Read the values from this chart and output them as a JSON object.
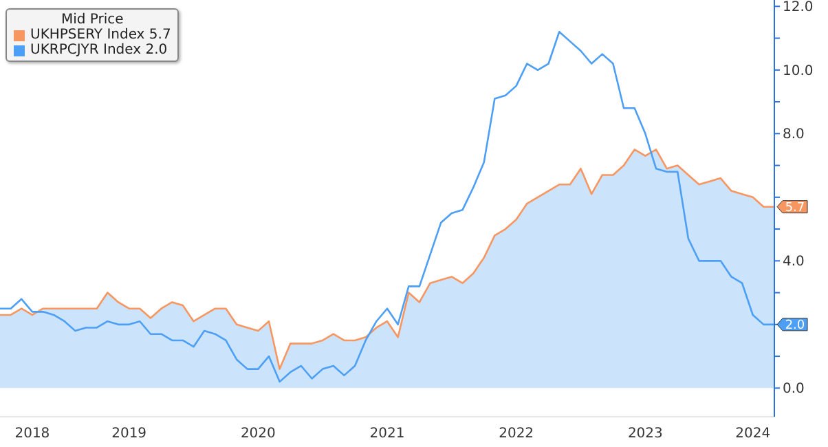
{
  "chart_data": {
    "type": "line",
    "legend_title": "Mid Price",
    "legend": "top left",
    "grid": false,
    "marker": "none",
    "line_style": "solid",
    "x": [
      "2018-06",
      "2018-07",
      "2018-08",
      "2018-09",
      "2018-10",
      "2018-11",
      "2018-12",
      "2019-01",
      "2019-02",
      "2019-03",
      "2019-04",
      "2019-05",
      "2019-06",
      "2019-07",
      "2019-08",
      "2019-09",
      "2019-10",
      "2019-11",
      "2019-12",
      "2020-01",
      "2020-02",
      "2020-03",
      "2020-04",
      "2020-05",
      "2020-06",
      "2020-07",
      "2020-08",
      "2020-09",
      "2020-10",
      "2020-11",
      "2020-12",
      "2021-01",
      "2021-02",
      "2021-03",
      "2021-04",
      "2021-05",
      "2021-06",
      "2021-07",
      "2021-08",
      "2021-09",
      "2021-10",
      "2021-11",
      "2021-12",
      "2022-01",
      "2022-02",
      "2022-03",
      "2022-04",
      "2022-05",
      "2022-06",
      "2022-07",
      "2022-08",
      "2022-09",
      "2022-10",
      "2022-11",
      "2022-12",
      "2023-01",
      "2023-02",
      "2023-03",
      "2023-04",
      "2023-05",
      "2023-06",
      "2023-07",
      "2023-08",
      "2023-09",
      "2023-10",
      "2023-11",
      "2023-12",
      "2024-01",
      "2024-02",
      "2024-03",
      "2024-04",
      "2024-05",
      "2024-06"
    ],
    "xlim": [
      "2018-06",
      "2024-06"
    ],
    "xticks": [
      {
        "value": "2018-09",
        "label": "2018"
      },
      {
        "value": "2019-06",
        "label": "2019"
      },
      {
        "value": "2020-06",
        "label": "2020"
      },
      {
        "value": "2021-06",
        "label": "2021"
      },
      {
        "value": "2022-06",
        "label": "2022"
      },
      {
        "value": "2023-06",
        "label": "2023"
      },
      {
        "value": "2024-04",
        "label": "2024"
      }
    ],
    "ylim": [
      -0.9,
      12.2
    ],
    "yticks": [
      {
        "value": 0,
        "label": "0.0"
      },
      {
        "value": 1,
        "label": null
      },
      {
        "value": 2,
        "label": null
      },
      {
        "value": 3,
        "label": null
      },
      {
        "value": 4,
        "label": "4.0"
      },
      {
        "value": 5,
        "label": null
      },
      {
        "value": 6,
        "label": null
      },
      {
        "value": 7,
        "label": null
      },
      {
        "value": 8,
        "label": "8.0"
      },
      {
        "value": 9,
        "label": null
      },
      {
        "value": 10,
        "label": "10.0"
      },
      {
        "value": 11,
        "label": null
      },
      {
        "value": 12,
        "label": "12.0"
      }
    ],
    "series": [
      {
        "name": "UKHPSERY Index 5.7",
        "type": "line",
        "color": "#f79660",
        "values": [
          2.3,
          2.3,
          2.5,
          2.3,
          2.5,
          2.5,
          2.5,
          2.5,
          2.5,
          2.5,
          3.0,
          2.7,
          2.5,
          2.5,
          2.2,
          2.5,
          2.7,
          2.6,
          2.1,
          2.3,
          2.5,
          2.5,
          2.0,
          1.9,
          1.8,
          2.1,
          0.6,
          1.4,
          1.4,
          1.4,
          1.5,
          1.7,
          1.5,
          1.5,
          1.6,
          1.9,
          2.1,
          1.6,
          3.0,
          2.7,
          3.3,
          3.4,
          3.5,
          3.3,
          3.6,
          4.1,
          4.8,
          5.0,
          5.3,
          5.8,
          6.0,
          6.2,
          6.4,
          6.4,
          6.9,
          6.1,
          6.7,
          6.7,
          7.0,
          7.5,
          7.3,
          7.5,
          6.9,
          7.0,
          6.7,
          6.4,
          6.5,
          6.6,
          6.2,
          6.1,
          6.0,
          5.7,
          5.7
        ],
        "value_labels": [
          null,
          null,
          null,
          null,
          null,
          null,
          null,
          null,
          null,
          null,
          null,
          null,
          null,
          null,
          null,
          null,
          null,
          null,
          null,
          null,
          null,
          null,
          null,
          null,
          null,
          null,
          null,
          null,
          null,
          null,
          null,
          null,
          null,
          null,
          null,
          null,
          null,
          null,
          null,
          null,
          null,
          null,
          null,
          null,
          null,
          null,
          null,
          null,
          null,
          null,
          null,
          null,
          null,
          null,
          null,
          null,
          null,
          null,
          null,
          null,
          null,
          null,
          null,
          null,
          null,
          null,
          null,
          null,
          null,
          null,
          null,
          null,
          "5.7"
        ]
      },
      {
        "type": "area",
        "color": "#cbe4fc",
        "values": [
          2.3,
          2.3,
          2.5,
          2.3,
          2.5,
          2.5,
          2.5,
          2.5,
          2.5,
          2.5,
          3.0,
          2.7,
          2.5,
          2.5,
          2.2,
          2.5,
          2.7,
          2.6,
          2.1,
          2.3,
          2.5,
          2.5,
          2.0,
          1.9,
          1.8,
          2.1,
          0.6,
          1.4,
          1.4,
          1.4,
          1.5,
          1.7,
          1.5,
          1.5,
          1.6,
          1.9,
          2.1,
          1.6,
          3.0,
          2.7,
          3.3,
          3.4,
          3.5,
          3.3,
          3.6,
          4.1,
          4.8,
          5.0,
          5.3,
          5.8,
          6.0,
          6.2,
          6.4,
          6.4,
          6.9,
          6.1,
          6.7,
          6.7,
          7.0,
          7.5,
          7.3,
          7.5,
          6.9,
          7.0,
          6.7,
          6.4,
          6.5,
          6.6,
          6.2,
          6.1,
          6.0,
          5.7,
          5.7
        ]
      },
      {
        "name": "UKRPCJYR Index 2.0",
        "color": "#4d9ff5",
        "values": [
          2.5,
          2.5,
          2.8,
          2.4,
          2.4,
          2.3,
          2.1,
          1.8,
          1.9,
          1.9,
          2.1,
          2.0,
          2.0,
          2.1,
          1.7,
          1.7,
          1.5,
          1.5,
          1.3,
          1.8,
          1.7,
          1.5,
          0.9,
          0.6,
          0.6,
          1.0,
          0.2,
          0.5,
          0.7,
          0.3,
          0.6,
          0.7,
          0.4,
          0.7,
          1.5,
          2.1,
          2.5,
          2.0,
          3.2,
          3.2,
          4.2,
          5.2,
          5.5,
          5.6,
          6.3,
          7.1,
          9.1,
          9.2,
          9.5,
          10.2,
          10.0,
          10.2,
          11.2,
          10.9,
          10.6,
          10.2,
          10.5,
          10.2,
          8.8,
          8.8,
          8.0,
          6.9,
          6.8,
          6.8,
          4.7,
          4.0,
          4.0,
          4.0,
          3.5,
          3.3,
          2.3,
          2.0,
          2.0
        ],
        "value_labels": [
          null,
          null,
          null,
          null,
          null,
          null,
          null,
          null,
          null,
          null,
          null,
          null,
          null,
          null,
          null,
          null,
          null,
          null,
          null,
          null,
          null,
          null,
          null,
          null,
          null,
          null,
          null,
          null,
          null,
          null,
          null,
          null,
          null,
          null,
          null,
          null,
          null,
          null,
          null,
          null,
          null,
          null,
          null,
          null,
          null,
          null,
          null,
          null,
          null,
          null,
          null,
          null,
          null,
          null,
          null,
          null,
          null,
          null,
          null,
          null,
          null,
          null,
          null,
          null,
          null,
          null,
          null,
          null,
          null,
          null,
          null,
          null,
          "2.0"
        ]
      }
    ]
  }
}
